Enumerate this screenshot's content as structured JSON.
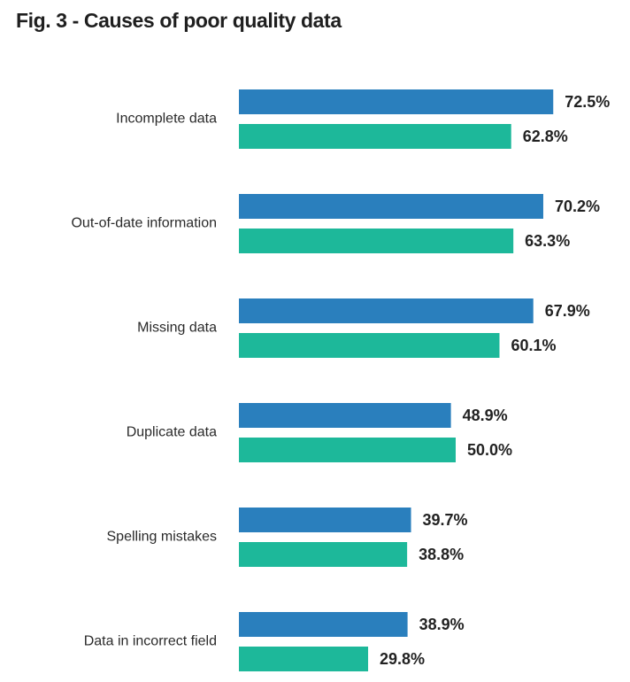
{
  "chart_data": {
    "type": "bar",
    "orientation": "horizontal",
    "title": "Fig. 3 - Causes of poor quality data",
    "categories": [
      "Incomplete data",
      "Out-of-date information",
      "Missing data",
      "Duplicate data",
      "Spelling mistakes",
      "Data in incorrect field"
    ],
    "series": [
      {
        "values": [
          72.5,
          70.2,
          67.9,
          48.9,
          39.7,
          38.9
        ],
        "labels": [
          "72.5%",
          "70.2%",
          "67.9%",
          "48.9%",
          "39.7%",
          "38.9%"
        ],
        "color": "#2a7fbd"
      },
      {
        "values": [
          62.8,
          63.3,
          60.1,
          50.0,
          38.8,
          29.8
        ],
        "labels": [
          "62.8%",
          "63.3%",
          "60.1%",
          "50.0%",
          "38.8%",
          "29.8%"
        ],
        "color": "#1db89a"
      }
    ],
    "value_unit": "%",
    "xlim": [
      0,
      100
    ],
    "grid": false,
    "legend": "none"
  }
}
